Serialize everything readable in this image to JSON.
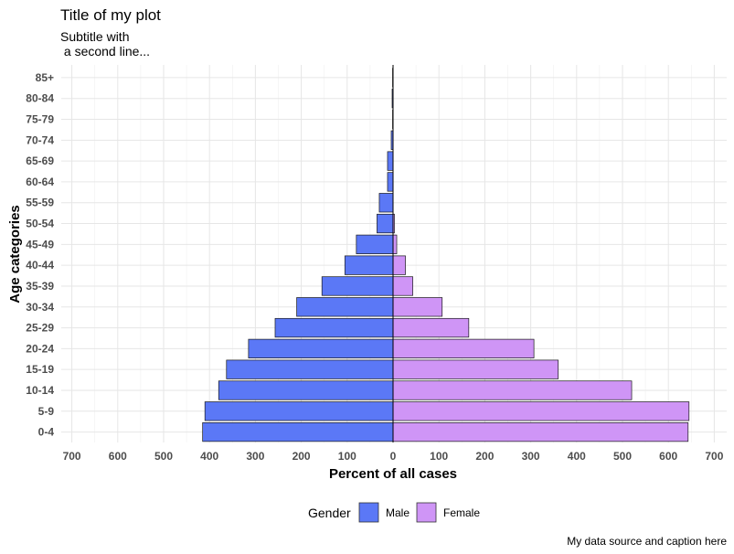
{
  "chart_data": {
    "type": "bar",
    "orientation": "horizontal",
    "title": "Title of my plot",
    "subtitle": [
      "Subtitle with",
      " a second line..."
    ],
    "xlabel": "Percent of all cases",
    "ylabel": "Age categories",
    "caption": "My data source and caption here",
    "xlim": [
      -700,
      700
    ],
    "x_ticks": [
      -700,
      -600,
      -500,
      -400,
      -300,
      -200,
      -100,
      0,
      100,
      200,
      300,
      400,
      500,
      600,
      700
    ],
    "x_tick_labels": [
      "700",
      "600",
      "500",
      "400",
      "300",
      "200",
      "100",
      "0",
      "100",
      "200",
      "300",
      "400",
      "500",
      "600",
      "700"
    ],
    "categories": [
      "0-4",
      "5-9",
      "10-14",
      "15-19",
      "20-24",
      "25-29",
      "30-34",
      "35-39",
      "40-44",
      "45-49",
      "50-54",
      "55-59",
      "60-64",
      "65-69",
      "70-74",
      "75-79",
      "80-84",
      "85+"
    ],
    "series": [
      {
        "name": "Male",
        "color": "#5b78f6",
        "values": [
          -415,
          -410,
          -380,
          -363,
          -315,
          -257,
          -210,
          -155,
          -105,
          -80,
          -35,
          -30,
          -12,
          -12,
          -4,
          -1,
          -2,
          -1
        ]
      },
      {
        "name": "Female",
        "color": "#cf95f6",
        "values": [
          643,
          645,
          520,
          360,
          307,
          165,
          107,
          43,
          27,
          8,
          3,
          0,
          0,
          0,
          0,
          0,
          0,
          0
        ]
      }
    ],
    "legend": {
      "title": "Gender",
      "position": "bottom"
    },
    "grid": true
  }
}
